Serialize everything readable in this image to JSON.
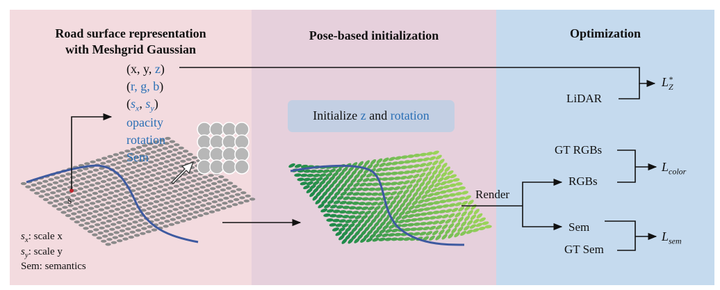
{
  "panels": {
    "left": {
      "title_line1": "Road surface representation",
      "title_line2": "with Meshgrid Gaussian"
    },
    "middle": {
      "title": "Pose-based initialization"
    },
    "right": {
      "title": "Optimization"
    }
  },
  "attributes": {
    "xyz_prefix": "(x, y, ",
    "xyz_z": "z",
    "xyz_suffix": ")",
    "rgb_open": "(",
    "rgb_inner": "r, g, b",
    "rgb_close": ")",
    "scale_open": "(",
    "scale_sx": "s",
    "scale_sx_sub": "x",
    "scale_comma": ", ",
    "scale_sy": "s",
    "scale_sy_sub": "y",
    "scale_close": ")",
    "opacity": "opacity",
    "rotation": "rotation",
    "sem": "Sem"
  },
  "point_label": "s",
  "legend": {
    "sx_symbol": "s",
    "sx_sub": "x",
    "sx_text": ": scale x",
    "sy_symbol": "s",
    "sy_sub": "y",
    "sy_text": ": scale y",
    "sem_text": "Sem: semantics"
  },
  "init_box": {
    "prefix": "Initialize ",
    "z": "z",
    "middle": " and ",
    "rotation": "rotation"
  },
  "optimization": {
    "lidar": "LiDAR",
    "render": "Render",
    "gt_rgbs": "GT RGBs",
    "rgbs": "RGBs",
    "sem": "Sem",
    "gt_sem": "GT Sem",
    "loss_z": {
      "symbol": "L",
      "sup": "*",
      "sub": "Z"
    },
    "loss_color": {
      "symbol": "L",
      "sub": "color"
    },
    "loss_sem": {
      "symbol": "L",
      "sub": "sem"
    }
  },
  "colors": {
    "panel_left": "#f3dbdf",
    "panel_middle": "#e6d0dc",
    "panel_right": "#c5daee",
    "accent_blue": "#2a6fb5",
    "curve_blue": "#3e5aa0",
    "init_box": "#c3cfe3",
    "mesh_gray": "#8a8a8a",
    "mesh_green_dark": "#1f8a4a",
    "mesh_green_light": "#9ad35a"
  }
}
